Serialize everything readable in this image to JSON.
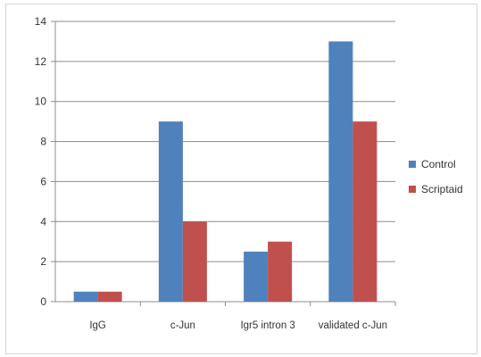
{
  "chart_data": {
    "type": "bar",
    "title": "",
    "xlabel": "",
    "ylabel": "",
    "categories": [
      "IgG",
      "c-Jun",
      "Igr5 intron 3",
      "validated c-Jun"
    ],
    "series": [
      {
        "name": "Control",
        "color": "#4f81bd",
        "values": [
          0.5,
          9,
          2.5,
          13
        ]
      },
      {
        "name": "Scriptaid",
        "color": "#c0504d",
        "values": [
          0.5,
          4,
          3,
          9
        ]
      }
    ],
    "ylim": [
      0,
      14
    ],
    "yticks": [
      "0",
      "2",
      "4",
      "6",
      "8",
      "10",
      "12",
      "14"
    ],
    "grid": true,
    "legend": "right"
  }
}
